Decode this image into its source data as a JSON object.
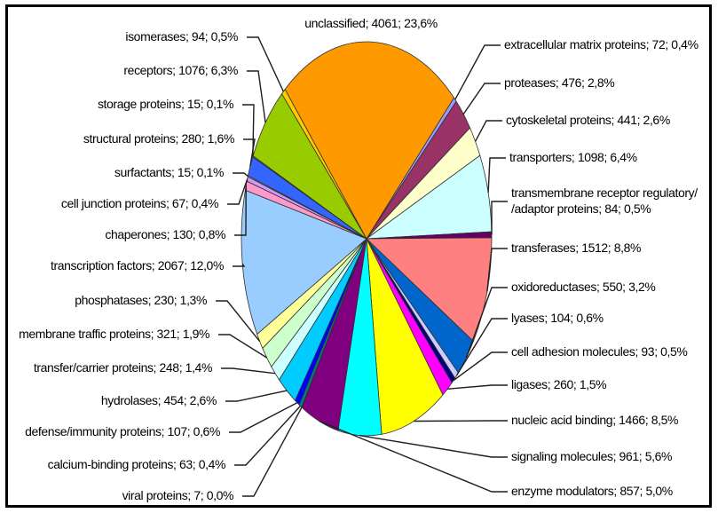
{
  "figure": {
    "background": "#FFFFFF",
    "frame_color": "#000000",
    "label_color": "#000000",
    "leader_line_color": "#1F1F1F",
    "slice_border_color": "#303030"
  },
  "chart_data": {
    "type": "pie",
    "title": "",
    "legend_position": "none",
    "label_format": "name; value; percent",
    "decimal_separator": ",",
    "direction": "clockwise",
    "start_angle_deg": 44.3,
    "shape": "ellipse",
    "slices": [
      {
        "name": "extracellular matrix proteins",
        "value": 72,
        "percent": "0,4%",
        "color": "#9999FF"
      },
      {
        "name": "proteases",
        "value": 476,
        "percent": "2,8%",
        "color": "#993366"
      },
      {
        "name": "cytoskeletal proteins",
        "value": 441,
        "percent": "2,6%",
        "color": "#FFFFCC"
      },
      {
        "name": "transporters",
        "value": 1098,
        "percent": "6,4%",
        "color": "#CCFFFF"
      },
      {
        "name": "transmembrane receptor regulatory/\n/adaptor proteins",
        "value": 84,
        "percent": "0,5%",
        "color": "#660066"
      },
      {
        "name": "transferases",
        "value": 1512,
        "percent": "8,8%",
        "color": "#FF8080"
      },
      {
        "name": "oxidoreductases",
        "value": 550,
        "percent": "3,2%",
        "color": "#0066CC"
      },
      {
        "name": "lyases",
        "value": 104,
        "percent": "0,6%",
        "color": "#CCCCFF"
      },
      {
        "name": "cell adhesion molecules",
        "value": 93,
        "percent": "0,5%",
        "color": "#000080"
      },
      {
        "name": "ligases",
        "value": 260,
        "percent": "1,5%",
        "color": "#FF00FF"
      },
      {
        "name": "nucleic acid binding",
        "value": 1466,
        "percent": "8,5%",
        "color": "#FFFF00"
      },
      {
        "name": "signaling molecules",
        "value": 961,
        "percent": "5,6%",
        "color": "#00FFFF"
      },
      {
        "name": "enzyme modulators",
        "value": 857,
        "percent": "5,0%",
        "color": "#800080"
      },
      {
        "name": "viral proteins",
        "value": 7,
        "percent": "0,0%",
        "color": "#800000"
      },
      {
        "name": "calcium-binding proteins",
        "value": 63,
        "percent": "0,4%",
        "color": "#008080"
      },
      {
        "name": "defense/immunity proteins",
        "value": 107,
        "percent": "0,6%",
        "color": "#0000FF"
      },
      {
        "name": "hydrolases",
        "value": 454,
        "percent": "2,6%",
        "color": "#00CCFF"
      },
      {
        "name": "transfer/carrier proteins",
        "value": 248,
        "percent": "1,4%",
        "color": "#CCFFFF"
      },
      {
        "name": "membrane traffic proteins",
        "value": 321,
        "percent": "1,9%",
        "color": "#CCFFCC"
      },
      {
        "name": "phosphatases",
        "value": 230,
        "percent": "1,3%",
        "color": "#FFFF99"
      },
      {
        "name": "transcription factors",
        "value": 2067,
        "percent": "12,0%",
        "color": "#99CCFF"
      },
      {
        "name": "chaperones",
        "value": 130,
        "percent": "0,8%",
        "color": "#FF99CC"
      },
      {
        "name": "cell junction proteins",
        "value": 67,
        "percent": "0,4%",
        "color": "#CC99FF"
      },
      {
        "name": "surfactants",
        "value": 15,
        "percent": "0,1%",
        "color": "#FFCC99"
      },
      {
        "name": "structural proteins",
        "value": 280,
        "percent": "1,6%",
        "color": "#3366FF"
      },
      {
        "name": "storage proteins",
        "value": 15,
        "percent": "0,1%",
        "color": "#33CCCC"
      },
      {
        "name": "receptors",
        "value": 1076,
        "percent": "6,3%",
        "color": "#99CC00"
      },
      {
        "name": "isomerases",
        "value": 94,
        "percent": "0,5%",
        "color": "#FFCC00"
      },
      {
        "name": "unclassified",
        "value": 4061,
        "percent": "23,6%",
        "color": "#FF9900"
      }
    ]
  }
}
